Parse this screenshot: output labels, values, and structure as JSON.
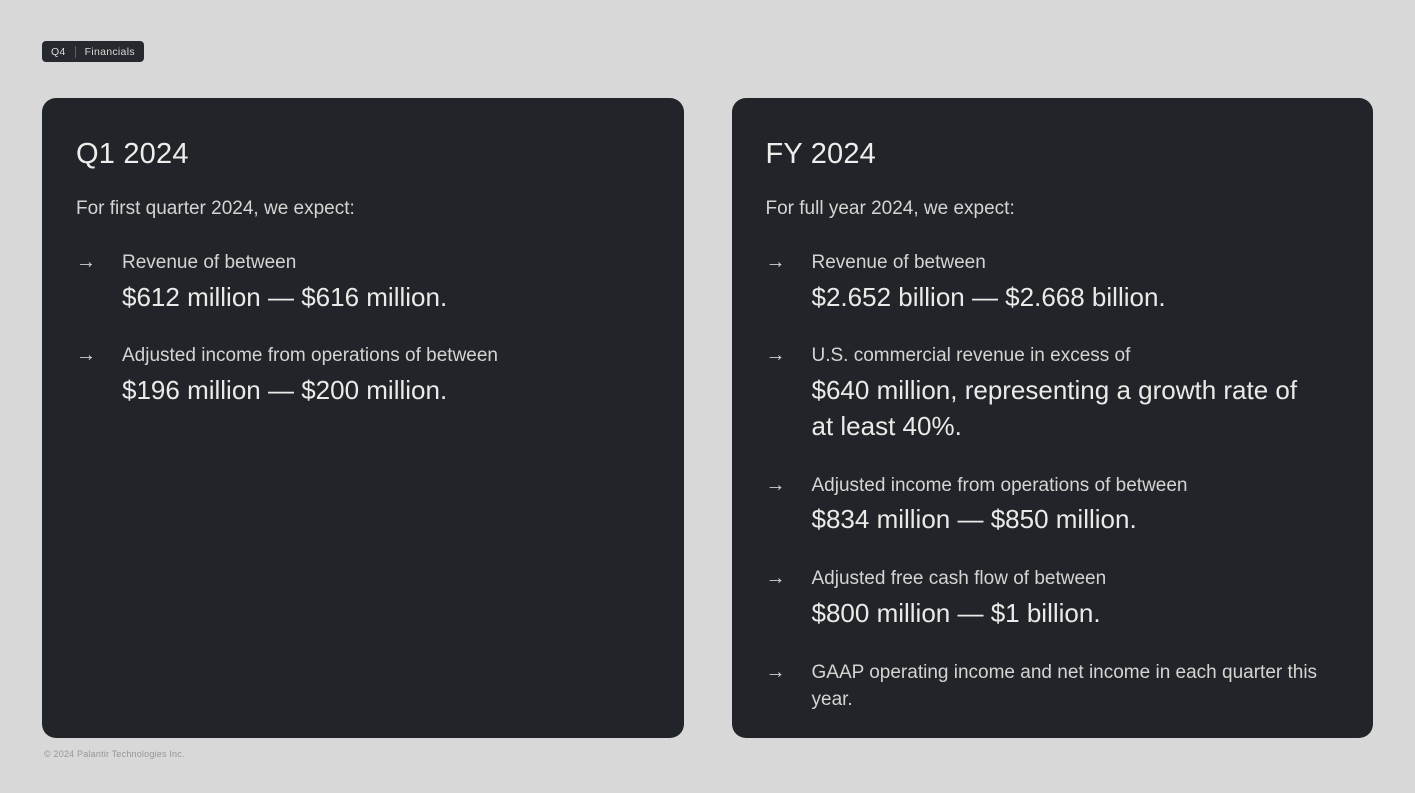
{
  "page": {
    "background": "#d8d8d8",
    "card_background": "#212529",
    "footer": "© 2024 Palantir Technologies Inc."
  },
  "icons": {
    "arrow": "→"
  },
  "badge": {
    "quarter": "Q4",
    "label": "Financials"
  },
  "cards": [
    {
      "title": "Q1 2024",
      "intro": "For first quarter 2024, we expect:",
      "bullets": [
        {
          "lead": "Revenue of between",
          "detail": "$612 million — $616 million."
        },
        {
          "lead": "Adjusted income from operations of between",
          "detail": "$196 million — $200 million."
        }
      ]
    },
    {
      "title": "FY 2024",
      "intro": "For full year 2024, we expect:",
      "bullets": [
        {
          "lead": "Revenue of between",
          "detail": "$2.652 billion — $2.668 billion."
        },
        {
          "lead": "U.S. commercial revenue in excess of",
          "detail": "$640 million, representing a growth rate of at least 40%."
        },
        {
          "lead": "Adjusted income from operations of between",
          "detail": "$834 million — $850 million."
        },
        {
          "lead": "Adjusted free cash flow of between",
          "detail": "$800 million — $1 billion."
        },
        {
          "lead": "GAAP operating income and net income in each quarter this year.",
          "detail": ""
        }
      ]
    }
  ]
}
